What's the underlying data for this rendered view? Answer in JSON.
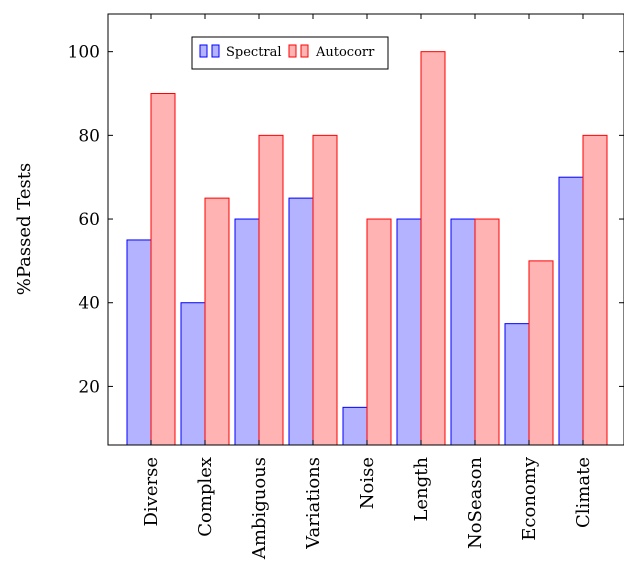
{
  "chart_data": {
    "type": "bar",
    "categories": [
      "Diverse",
      "Complex",
      "Ambiguous",
      "Variations",
      "Noise",
      "Length",
      "NoSeason",
      "Economy",
      "Climate"
    ],
    "series": [
      {
        "name": "Spectral",
        "values": [
          55,
          40,
          60,
          65,
          15,
          60,
          60,
          35,
          70
        ],
        "fill": "#b3b3ff",
        "stroke": "#0000ff"
      },
      {
        "name": "Autocorr",
        "values": [
          90,
          65,
          80,
          80,
          60,
          100,
          60,
          50,
          80
        ],
        "fill": "#ffb3b3",
        "stroke": "#ff0000"
      }
    ],
    "ylabel": "%Passed Tests",
    "xlabel": "",
    "title": "",
    "ylim": [
      6,
      109
    ],
    "yticks": [
      20,
      40,
      60,
      80,
      100
    ],
    "grid": false,
    "legend_position": "top-left"
  }
}
